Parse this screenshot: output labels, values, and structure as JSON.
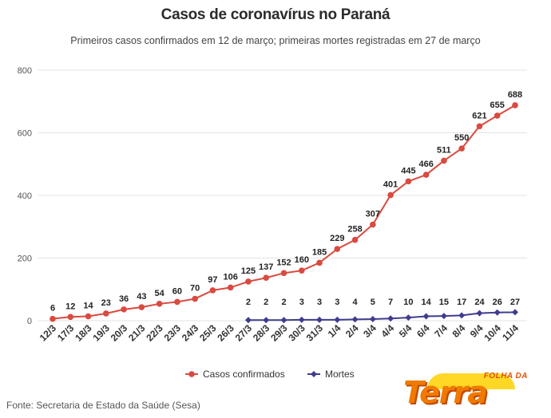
{
  "header": {
    "title": "Casos de coronavírus no Paraná",
    "subtitle": "Primeiros casos confirmados em 12 de março; primeiras mortes registradas em 27 de março"
  },
  "footer": {
    "source": "Fonte: Secretaria de Estado da Saúde (Sesa)",
    "logo_top": "FOLHA DA",
    "logo_main": "Terra"
  },
  "colors": {
    "casos": "#d94a3f",
    "mortes": "#3f3d8f",
    "grid": "#e3e3e3",
    "logo": "#f07a00"
  },
  "chart_data": {
    "type": "line",
    "title": "Casos de coronavírus no Paraná",
    "subtitle": "Primeiros casos confirmados em 12 de março; primeiras mortes registradas em 27 de março",
    "categories": [
      "12/3",
      "17/3",
      "18/3",
      "19/3",
      "20/3",
      "21/3",
      "22/3",
      "23/3",
      "24/3",
      "25/3",
      "26/3",
      "27/3",
      "28/3",
      "29/3",
      "30/3",
      "31/3",
      "1/4",
      "2/4",
      "3/4",
      "4/4",
      "5/4",
      "6/4",
      "7/4",
      "8/4",
      "9/4",
      "10/4",
      "11/4"
    ],
    "series": [
      {
        "name": "Casos confirmados",
        "values": [
          6,
          12,
          14,
          23,
          36,
          43,
          54,
          60,
          70,
          97,
          106,
          125,
          137,
          152,
          160,
          185,
          229,
          258,
          307,
          401,
          445,
          466,
          511,
          550,
          621,
          655,
          688
        ]
      },
      {
        "name": "Mortes",
        "values": [
          null,
          null,
          null,
          null,
          null,
          null,
          null,
          null,
          null,
          null,
          null,
          2,
          2,
          2,
          3,
          3,
          3,
          4,
          5,
          7,
          10,
          14,
          15,
          17,
          24,
          26,
          27
        ]
      }
    ],
    "ylim": [
      0,
      800
    ],
    "yticks": [
      0,
      200,
      400,
      600,
      800
    ],
    "grid": true,
    "legend": "bottom-center"
  }
}
